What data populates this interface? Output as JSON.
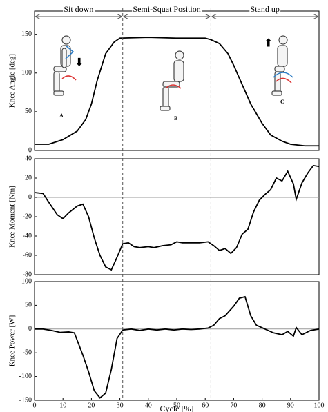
{
  "phases": [
    {
      "label": "Sit down"
    },
    {
      "label": "Semi-Squat Position"
    },
    {
      "label": "Stand up"
    }
  ],
  "phase_boundaries": [
    31,
    62
  ],
  "chart_data": [
    {
      "type": "line",
      "ylabel": "Knee Angle [deg]",
      "color": "#000000",
      "xlim": [
        0,
        100
      ],
      "ylim": [
        0,
        180
      ],
      "yticks": [
        0,
        50,
        100,
        150
      ],
      "annotations": [
        "A",
        "B",
        "C"
      ],
      "x": [
        0,
        5,
        10,
        15,
        18,
        20,
        22,
        25,
        28,
        30,
        40,
        50,
        60,
        62,
        65,
        68,
        70,
        73,
        76,
        80,
        83,
        87,
        90,
        95,
        98,
        100
      ],
      "values": [
        8,
        8,
        14,
        25,
        40,
        60,
        90,
        125,
        140,
        145,
        146,
        145,
        145,
        143,
        138,
        125,
        110,
        85,
        60,
        35,
        20,
        12,
        8,
        6,
        6,
        6
      ]
    },
    {
      "type": "line",
      "ylabel": "Knee Moment [Nm]",
      "color": "#000000",
      "zero_line": true,
      "xlim": [
        0,
        100
      ],
      "ylim": [
        -80,
        40
      ],
      "yticks": [
        -80,
        -60,
        -40,
        -20,
        0,
        20,
        40
      ],
      "x": [
        0,
        3,
        5,
        8,
        10,
        12,
        15,
        17,
        19,
        21,
        23,
        25,
        27,
        29,
        31,
        33,
        35,
        37,
        40,
        42,
        45,
        48,
        50,
        52,
        55,
        58,
        61,
        63,
        65,
        67,
        69,
        71,
        73,
        75,
        77,
        79,
        81,
        83,
        85,
        87,
        89,
        91,
        92,
        94,
        96,
        98,
        100
      ],
      "values": [
        5,
        4,
        -5,
        -18,
        -22,
        -16,
        -9,
        -7,
        -20,
        -42,
        -60,
        -72,
        -75,
        -62,
        -48,
        -47,
        -51,
        -52,
        -51,
        -52,
        -50,
        -49,
        -46,
        -47,
        -47,
        -47,
        -46,
        -50,
        -55,
        -53,
        -58,
        -52,
        -38,
        -33,
        -15,
        -3,
        3,
        8,
        20,
        17,
        27,
        14,
        -2,
        15,
        25,
        33,
        32
      ]
    },
    {
      "type": "line",
      "ylabel": "Knee Power [W]",
      "xlabel": "Cycle [%]",
      "color": "#000000",
      "zero_line": true,
      "xlim": [
        0,
        100
      ],
      "xticks": [
        0,
        10,
        20,
        30,
        40,
        50,
        60,
        70,
        80,
        90,
        100
      ],
      "ylim": [
        -150,
        100
      ],
      "yticks": [
        -150,
        -100,
        -50,
        0,
        50,
        100
      ],
      "x": [
        0,
        3,
        6,
        9,
        12,
        14,
        17,
        19,
        21,
        23,
        25,
        27,
        29,
        31,
        34,
        37,
        40,
        43,
        46,
        49,
        52,
        55,
        58,
        61,
        63,
        65,
        67,
        70,
        72,
        74,
        76,
        78,
        81,
        84,
        87,
        89,
        91,
        92,
        94,
        97,
        100
      ],
      "values": [
        0,
        0,
        -3,
        -7,
        -6,
        -8,
        -55,
        -90,
        -130,
        -145,
        -135,
        -85,
        -20,
        -2,
        0,
        -3,
        0,
        -2,
        0,
        -2,
        0,
        -1,
        0,
        2,
        8,
        22,
        28,
        48,
        65,
        68,
        28,
        8,
        0,
        -8,
        -12,
        -5,
        -15,
        3,
        -12,
        -3,
        0
      ]
    }
  ]
}
